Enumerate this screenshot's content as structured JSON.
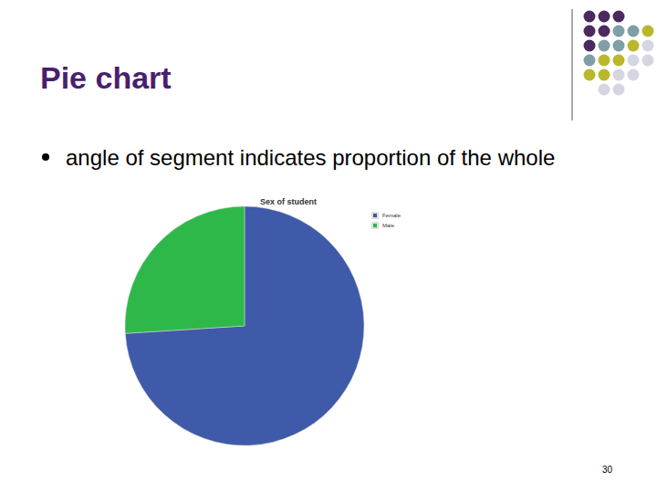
{
  "slide": {
    "title": "Pie chart",
    "bullets": [
      "angle of segment indicates proportion of the whole"
    ],
    "page_number": 30
  },
  "chart_data": {
    "type": "pie",
    "title": "Sex of student",
    "categories": [
      "Female",
      "Male"
    ],
    "values": [
      74,
      26
    ],
    "colors": [
      "#3f5aa8",
      "#2fb84a"
    ],
    "legend": "top-right",
    "data_labels": false
  }
}
